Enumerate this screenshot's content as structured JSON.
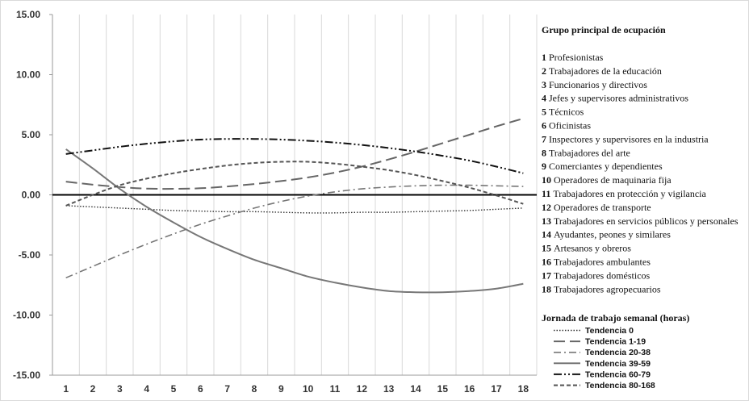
{
  "chart_data": {
    "type": "line",
    "x": [
      1,
      2,
      3,
      4,
      5,
      6,
      7,
      8,
      9,
      10,
      11,
      12,
      13,
      14,
      15,
      16,
      17,
      18
    ],
    "ylim": [
      -15,
      15
    ],
    "yticks": [
      "15.00",
      "10.00",
      "5.00",
      "0.00",
      "-5.00",
      "-10.00",
      "-15.00"
    ],
    "xticks": [
      "1",
      "2",
      "3",
      "4",
      "5",
      "6",
      "7",
      "8",
      "9",
      "10",
      "11",
      "12",
      "13",
      "14",
      "15",
      "16",
      "17",
      "18"
    ],
    "grid": "vertical",
    "legend_position": "right",
    "series": [
      {
        "name": "Tendencia 0",
        "dash": "dotted",
        "color": "#333333",
        "values": [
          -0.9,
          -1.0,
          -1.1,
          -1.2,
          -1.3,
          -1.35,
          -1.4,
          -1.4,
          -1.45,
          -1.5,
          -1.5,
          -1.45,
          -1.45,
          -1.4,
          -1.35,
          -1.3,
          -1.2,
          -1.1
        ]
      },
      {
        "name": "Tendencia 1-19",
        "dash": "long",
        "color": "#666666",
        "values": [
          1.1,
          0.85,
          0.65,
          0.52,
          0.5,
          0.55,
          0.7,
          0.9,
          1.15,
          1.45,
          1.85,
          2.35,
          2.95,
          3.6,
          4.3,
          5.0,
          5.7,
          6.35
        ]
      },
      {
        "name": "Tendencia 20-38",
        "dash": "dashdot",
        "color": "#777777",
        "values": [
          -6.9,
          -5.95,
          -5.0,
          -4.1,
          -3.25,
          -2.45,
          -1.75,
          -1.1,
          -0.55,
          -0.1,
          0.25,
          0.5,
          0.65,
          0.75,
          0.8,
          0.8,
          0.75,
          0.7
        ]
      },
      {
        "name": "Tendencia 39-59",
        "dash": "solid",
        "color": "#777777",
        "values": [
          3.8,
          2.2,
          0.5,
          -1.0,
          -2.3,
          -3.5,
          -4.5,
          -5.4,
          -6.1,
          -6.8,
          -7.3,
          -7.7,
          -8.0,
          -8.1,
          -8.1,
          -8.0,
          -7.8,
          -7.4
        ]
      },
      {
        "name": "Tendencia 60-79",
        "dash": "dashdotdot",
        "color": "#111111",
        "values": [
          3.4,
          3.7,
          4.0,
          4.25,
          4.45,
          4.6,
          4.65,
          4.65,
          4.6,
          4.5,
          4.35,
          4.15,
          3.9,
          3.6,
          3.25,
          2.85,
          2.35,
          1.8
        ]
      },
      {
        "name": "Tendencia 80-168",
        "dash": "short",
        "color": "#555555",
        "values": [
          -0.9,
          0.0,
          0.8,
          1.35,
          1.8,
          2.15,
          2.45,
          2.65,
          2.75,
          2.75,
          2.6,
          2.35,
          2.05,
          1.65,
          1.15,
          0.6,
          -0.05,
          -0.75
        ]
      }
    ]
  },
  "legend": {
    "occupation_title": "Grupo principal de ocupación",
    "occupations": [
      {
        "num": "1",
        "label": "Profesionistas"
      },
      {
        "num": "2",
        "label": "Trabajadores de la educación"
      },
      {
        "num": "3",
        "label": "Funcionarios y directivos"
      },
      {
        "num": "4",
        "label": "Jefes y supervisores administrativos"
      },
      {
        "num": "5",
        "label": "Técnicos"
      },
      {
        "num": "6",
        "label": "Oficinistas"
      },
      {
        "num": "7",
        "label": "Inspectores y supervisores en la industria"
      },
      {
        "num": "8",
        "label": "Trabajadores del arte"
      },
      {
        "num": "9",
        "label": "Comerciantes y dependientes"
      },
      {
        "num": "10",
        "label": "Operadores de maquinaria fija"
      },
      {
        "num": "11",
        "label": "Trabajadores en protección y vigilancia"
      },
      {
        "num": "12",
        "label": "Operadores de transporte"
      },
      {
        "num": "13",
        "label": "Trabajadores en servicios públicos y personales"
      },
      {
        "num": "14",
        "label": "Ayudantes, peones y similares"
      },
      {
        "num": "15",
        "label": "Artesanos y obreros"
      },
      {
        "num": "16",
        "label": "Trabajadores ambulantes"
      },
      {
        "num": "17",
        "label": "Trabajadores domésticos"
      },
      {
        "num": "18",
        "label": "Trabajadores agropecuarios"
      }
    ],
    "hours_title": "Jornada de trabajo semanal (horas)"
  }
}
